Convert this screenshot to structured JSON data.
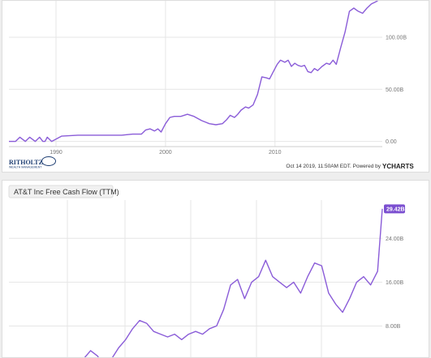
{
  "colors": {
    "line": "#8a5cd8",
    "badge": "#7b4fd0",
    "grid": "#e6e6e6",
    "axis_text": "#777777"
  },
  "chart_data": [
    {
      "type": "line",
      "title": "",
      "xlabel": "",
      "ylabel": "",
      "x_ticks": [
        "1990",
        "2000",
        "2010"
      ],
      "y_ticks": [
        "0.00",
        "50.00B",
        "100.00B"
      ],
      "xlim": [
        1985.7,
        2019.8
      ],
      "ylim": [
        -5,
        135
      ],
      "grid": true,
      "series": [
        {
          "x": [
            1985.7,
            1986.3,
            1986.7,
            1987.2,
            1987.6,
            1988.1,
            1988.5,
            1988.8,
            1989.0,
            1989.2,
            1989.6,
            1990.5,
            1992.0,
            1994.0,
            1996.0,
            1997.0,
            1997.8,
            1998.2,
            1998.6,
            1999.0,
            1999.3,
            1999.6,
            2000.0,
            2000.4,
            2000.8,
            2001.4,
            2002.0,
            2002.6,
            2003.3,
            2004.0,
            2004.6,
            2005.2,
            2005.6,
            2005.9,
            2006.3,
            2006.6,
            2006.9,
            2007.3,
            2007.6,
            2008.0,
            2008.4,
            2008.8,
            2009.2,
            2009.5,
            2009.8,
            2010.2,
            2010.5,
            2010.9,
            2011.2,
            2011.5,
            2011.8,
            2012.1,
            2012.4,
            2012.7,
            2013.0,
            2013.3,
            2013.6,
            2013.9,
            2014.3,
            2014.7,
            2015.0,
            2015.3,
            2015.6,
            2016.0,
            2016.4,
            2016.8,
            2017.2,
            2017.6,
            2018.0,
            2018.4,
            2018.8,
            2019.2,
            2019.5,
            2019.8
          ],
          "y": [
            0,
            0,
            4,
            0,
            4,
            0,
            4,
            0,
            0,
            4,
            0,
            5,
            6,
            6,
            6,
            7,
            7,
            11,
            12,
            10,
            12,
            9,
            17,
            23,
            24,
            24,
            26,
            24,
            20,
            17,
            16,
            17,
            21,
            25,
            23,
            26,
            30,
            33,
            32,
            35,
            45,
            62,
            61,
            60,
            66,
            74,
            78,
            76,
            78,
            72,
            75,
            73,
            72,
            73,
            67,
            66,
            70,
            68,
            72,
            75,
            74,
            78,
            74,
            90,
            105,
            125,
            128,
            125,
            123,
            128,
            132,
            134,
            136,
            138
          ]
        }
      ]
    },
    {
      "type": "line",
      "title": "AT&T Inc Free Cash Flow (TTM)",
      "xlabel": "",
      "ylabel": "",
      "y_ticks": [
        "8.00B",
        "16.00B",
        "24.00B"
      ],
      "ylim": [
        2,
        31
      ],
      "grid": true,
      "last_value_label": "29.42B",
      "series": [
        {
          "x": [
            2006.7,
            2007.0,
            2007.3,
            2007.6,
            2007.9,
            2008.2,
            2008.5,
            2008.8,
            2009.1,
            2009.4,
            2009.7,
            2010.0,
            2010.3,
            2010.6,
            2010.9,
            2011.2,
            2011.5,
            2011.8,
            2012.1,
            2012.4,
            2012.7,
            2013.0,
            2013.3,
            2013.6,
            2013.9,
            2014.2,
            2014.5,
            2014.8,
            2015.1,
            2015.4,
            2015.7,
            2016.0,
            2016.3,
            2016.6,
            2016.9,
            2017.2,
            2017.5,
            2017.8,
            2018.1,
            2018.4,
            2018.7,
            2019.0,
            2019.3,
            2019.5
          ],
          "y": [
            2.0,
            3.5,
            2.5,
            0.5,
            2.0,
            4.0,
            5.5,
            7.5,
            9.0,
            8.5,
            7.0,
            6.5,
            6.0,
            6.5,
            5.5,
            6.5,
            7.0,
            6.5,
            7.5,
            8.0,
            11.0,
            15.5,
            16.5,
            13.0,
            16.0,
            17.0,
            20.0,
            17.0,
            16.0,
            15.0,
            16.0,
            14.0,
            17.0,
            19.5,
            19.0,
            14.0,
            12.0,
            10.5,
            13.0,
            16.0,
            17.0,
            15.5,
            18.0,
            29.4
          ]
        }
      ]
    }
  ],
  "footer": {
    "logo": "RITHOLTZ",
    "logo_sub": "WEALTH MANAGEMENT",
    "timestamp": "Oct 14 2019, 11:50AM EDT. Powered by",
    "brand": "YCHARTS"
  }
}
